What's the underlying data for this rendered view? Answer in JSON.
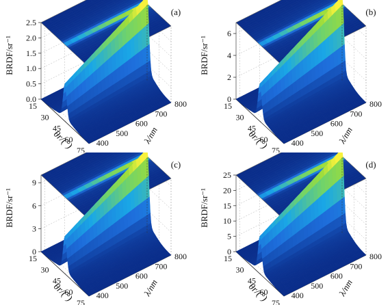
{
  "chart_data": [
    {
      "type": "surface3d",
      "panel_label": "(a)",
      "x": {
        "label": "θr/(°)",
        "ticks": [
          15,
          30,
          45,
          60,
          75
        ]
      },
      "y": {
        "label": "λ/nm",
        "ticks": [
          400,
          500,
          600,
          700,
          800
        ]
      },
      "z": {
        "label": "BRDF/sr⁻¹",
        "ticks": [
          0.0,
          0.5,
          1.0,
          1.5,
          2.0,
          2.5
        ],
        "range": [
          0.0,
          2.5
        ]
      },
      "peak": {
        "theta_deg": 45,
        "max_value": 2.45
      },
      "projection": "top colormap plane"
    },
    {
      "type": "surface3d",
      "panel_label": "(b)",
      "x": {
        "label": "θr/(°)",
        "ticks": [
          15,
          30,
          45,
          60,
          75
        ]
      },
      "y": {
        "label": "λ/nm",
        "ticks": [
          400,
          500,
          600,
          700,
          800
        ]
      },
      "z": {
        "label": "BRDF/sr⁻¹",
        "ticks": [
          0,
          2,
          4,
          6
        ],
        "range": [
          0,
          7
        ]
      },
      "peak": {
        "theta_deg": 45,
        "max_value": 6.5
      },
      "projection": "top colormap plane"
    },
    {
      "type": "surface3d",
      "panel_label": "(c)",
      "x": {
        "label": "θr/(°)",
        "ticks": [
          15,
          30,
          45,
          60,
          75
        ]
      },
      "y": {
        "label": "λ/nm",
        "ticks": [
          400,
          500,
          600,
          700,
          800
        ]
      },
      "z": {
        "label": "BRDF/sr⁻¹",
        "ticks": [
          0,
          3,
          6,
          9
        ],
        "range": [
          0,
          10
        ]
      },
      "peak": {
        "theta_deg": 45,
        "max_value": 9.5
      },
      "projection": "top colormap plane"
    },
    {
      "type": "surface3d",
      "panel_label": "(d)",
      "x": {
        "label": "θr/(°)",
        "ticks": [
          15,
          30,
          45,
          60,
          75
        ]
      },
      "y": {
        "label": "λ/nm",
        "ticks": [
          400,
          500,
          600,
          700,
          800
        ]
      },
      "z": {
        "label": "BRDF/sr⁻¹",
        "ticks": [
          0,
          5,
          10,
          15,
          20,
          25
        ],
        "range": [
          0,
          25
        ]
      },
      "peak": {
        "theta_deg": 45,
        "max_value": 24
      },
      "projection": "top colormap plane"
    }
  ],
  "colors": {
    "low": "#0a2d8a",
    "mid": "#1aa8e6",
    "high": "#8fdd3b",
    "peak": "#f8f23c",
    "grid": "#b0b0b0"
  }
}
